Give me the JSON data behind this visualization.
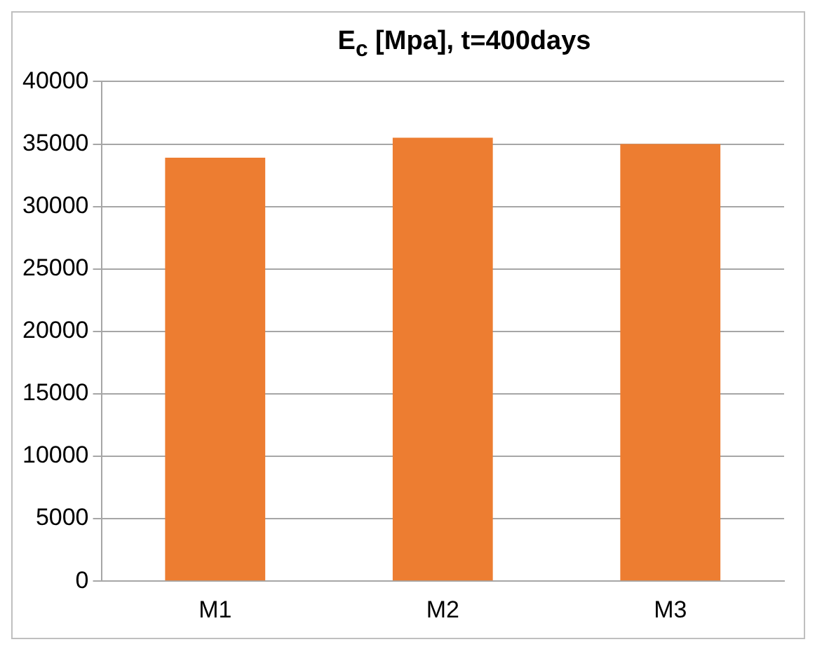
{
  "chart_data": {
    "type": "bar",
    "title": "E$_{c}$ [Mpa], t=400days",
    "categories": [
      "M1",
      "M2",
      "M3"
    ],
    "values": [
      33900,
      35500,
      35000
    ],
    "color": "#ed7d31",
    "ylim": [
      0,
      40000
    ],
    "yticks": [
      0,
      5000,
      10000,
      15000,
      20000,
      25000,
      30000,
      35000,
      40000
    ],
    "grid": "y",
    "legend": false
  }
}
